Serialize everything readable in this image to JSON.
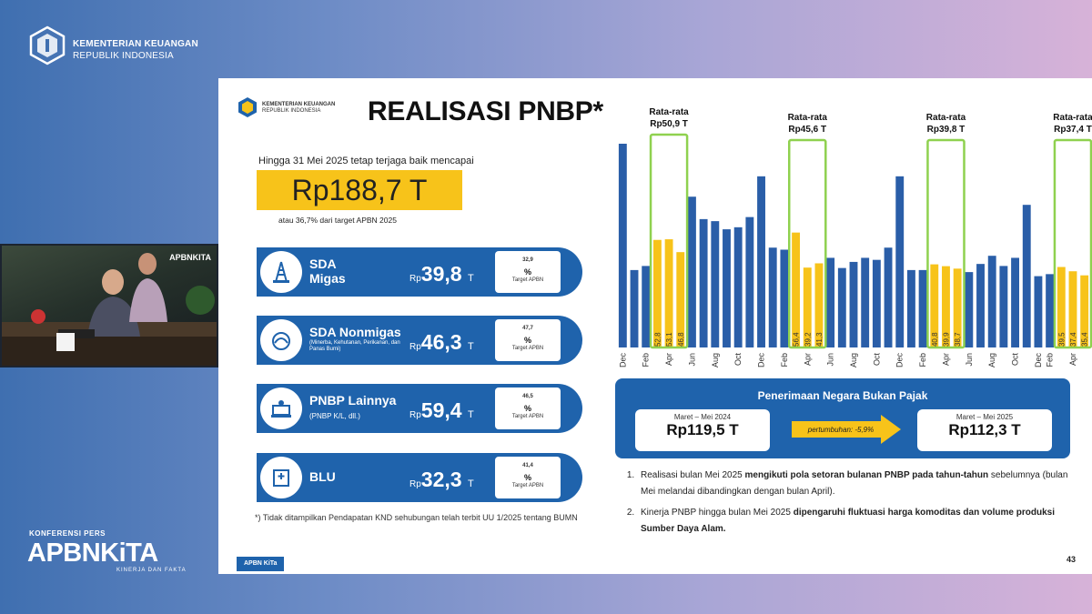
{
  "broadcast": {
    "org_line1": "KEMENTERIAN KEUANGAN",
    "org_line2": "REPUBLIK INDONESIA",
    "camera_tag": "APBNKITA",
    "camera_top": "",
    "konferensi": "KONFERENSI PERS",
    "brand": "APBNKiTA",
    "brand_tagline": "KINERJA DAN FAKTA"
  },
  "slide": {
    "org_line1": "KEMENTERIAN KEUANGAN",
    "org_line2": "REPUBLIK INDONESIA",
    "title": "REALISASI PNBP*",
    "desc": "Hingga 31 Mei 2025 tetap terjaga baik mencapai",
    "total": "Rp188,7 T",
    "total_sub": "atau 36,7% dari target APBN 2025",
    "cards": [
      {
        "name_l1": "SDA",
        "name_l2": "Migas",
        "sub": "",
        "rp": "Rp",
        "value": "39,8",
        "unit": "T",
        "pct": "32,9",
        "pct_unit": "%",
        "pct_label": "Target APBN",
        "icon": "oil-rig-icon"
      },
      {
        "name_l1": "SDA Nonmigas",
        "name_l2": "",
        "sub": "(Minerba, Kehutanan, Perikanan, dan Panas Bumi)",
        "rp": "Rp",
        "value": "46,3",
        "unit": "T",
        "pct": "47,7",
        "pct_unit": "%",
        "pct_label": "Target APBN",
        "icon": "mining-icon"
      },
      {
        "name_l1": "PNBP Lainnya",
        "name_l2": "",
        "sub": "(PNBP K/L, dll.)",
        "rp": "Rp",
        "value": "59,4",
        "unit": "T",
        "pct": "46,5",
        "pct_unit": "%",
        "pct_label": "Target APBN",
        "icon": "office-icon"
      },
      {
        "name_l1": "BLU",
        "name_l2": "",
        "sub": "",
        "rp": "Rp",
        "value": "32,3",
        "unit": "T",
        "pct": "41,4",
        "pct_unit": "%",
        "pct_label": "Target APBN",
        "icon": "hospital-icon"
      }
    ],
    "footnote": "*) Tidak ditampilkan Pendapatan KND sehubungan telah terbit UU 1/2025 tentang BUMN",
    "footer_tag": "APBN KiTa",
    "page_no": "43",
    "pnbp": {
      "title": "Penerimaan Negara Bukan Pajak",
      "left_label": "Maret – Mei 2024",
      "left_value": "Rp119,5 T",
      "arrow_label": "pertumbuhan: -5,9%",
      "right_label": "Maret – Mei 2025",
      "right_value": "Rp112,3 T"
    },
    "notes": [
      {
        "plain": "Realisasi bulan Mei 2025 ",
        "bold": "mengikuti pola setoran bulanan PNBP pada tahun-tahun",
        "tail": " sebelumnya (bulan Mei melandai dibandingkan dengan bulan April)."
      },
      {
        "plain": "Kinerja PNBP hingga bulan Mei 2025 ",
        "bold": "dipengaruhi fluktuasi harga komoditas dan volume produksi Sumber Daya Alam.",
        "tail": ""
      }
    ]
  },
  "chart_data": {
    "type": "bar",
    "colors": {
      "normal": "#2a5ea8",
      "highlight": "#f7c31a",
      "box": "#8fd14f"
    },
    "values": [
      100,
      38,
      40,
      52.8,
      53.1,
      46.8,
      74,
      63,
      62,
      58,
      59,
      64,
      84,
      49,
      48,
      56.4,
      39.2,
      41.3,
      44,
      39,
      42,
      44,
      43,
      49,
      84,
      38,
      38,
      40.8,
      39.9,
      38.7,
      37,
      41,
      45,
      40,
      44,
      70,
      35,
      36,
      39.5,
      37.4,
      35.4
    ],
    "highlight_labels": {
      "3": "52,8",
      "4": "53,1",
      "5": "46,8",
      "15": "56,4",
      "16": "39,2",
      "17": "41,3",
      "27": "40,8",
      "28": "39,9",
      "29": "38,7",
      "38": "39,5",
      "39": "37,4",
      "40": "35,4"
    },
    "tick_labels": {
      "0": "Dec",
      "2": "Feb",
      "4": "Apr",
      "6": "Jun",
      "8": "Aug",
      "10": "Oct",
      "12": "Dec",
      "14": "Feb",
      "16": "Apr",
      "18": "Jun",
      "20": "Aug",
      "22": "Oct",
      "24": "Dec",
      "26": "Feb",
      "28": "Apr",
      "30": "Jun",
      "32": "Aug",
      "34": "Oct",
      "36": "Dec",
      "37": "Feb",
      "39": "Apr"
    },
    "annotations": [
      {
        "label1": "Rata-rata",
        "label2": "Rp50,9 T",
        "start": 3,
        "end": 5
      },
      {
        "label1": "Rata-rata",
        "label2": "Rp45,6 T",
        "start": 15,
        "end": 17
      },
      {
        "label1": "Rata-rata",
        "label2": "Rp39,8 T",
        "start": 27,
        "end": 29
      },
      {
        "label1": "Rata-rata",
        "label2": "Rp37,4 T",
        "start": 38,
        "end": 40
      }
    ]
  }
}
